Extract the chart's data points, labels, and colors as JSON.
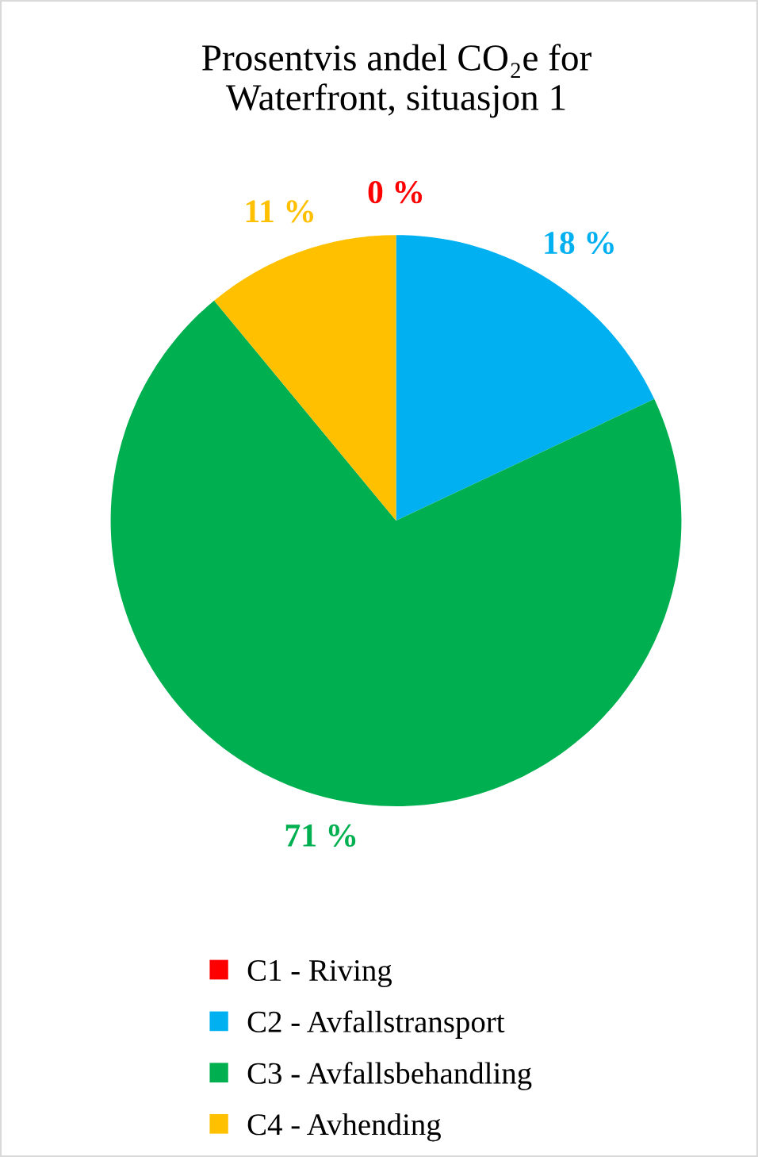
{
  "chart_data": {
    "type": "pie",
    "title": "Prosentvis andel CO₂e for\nWaterfront, situasjon 1",
    "categories": [
      "C1 - Riving",
      "C2 - Avfallstransport",
      "C3 - Avfallsbehandling",
      "C4 - Avhending"
    ],
    "values": [
      0,
      18,
      71,
      11
    ],
    "colors": [
      "#ff0000",
      "#00b0f0",
      "#00b050",
      "#ffc000"
    ],
    "value_labels": [
      "0 %",
      "18 %",
      "71 %",
      "11 %"
    ],
    "legend": "bottom"
  }
}
